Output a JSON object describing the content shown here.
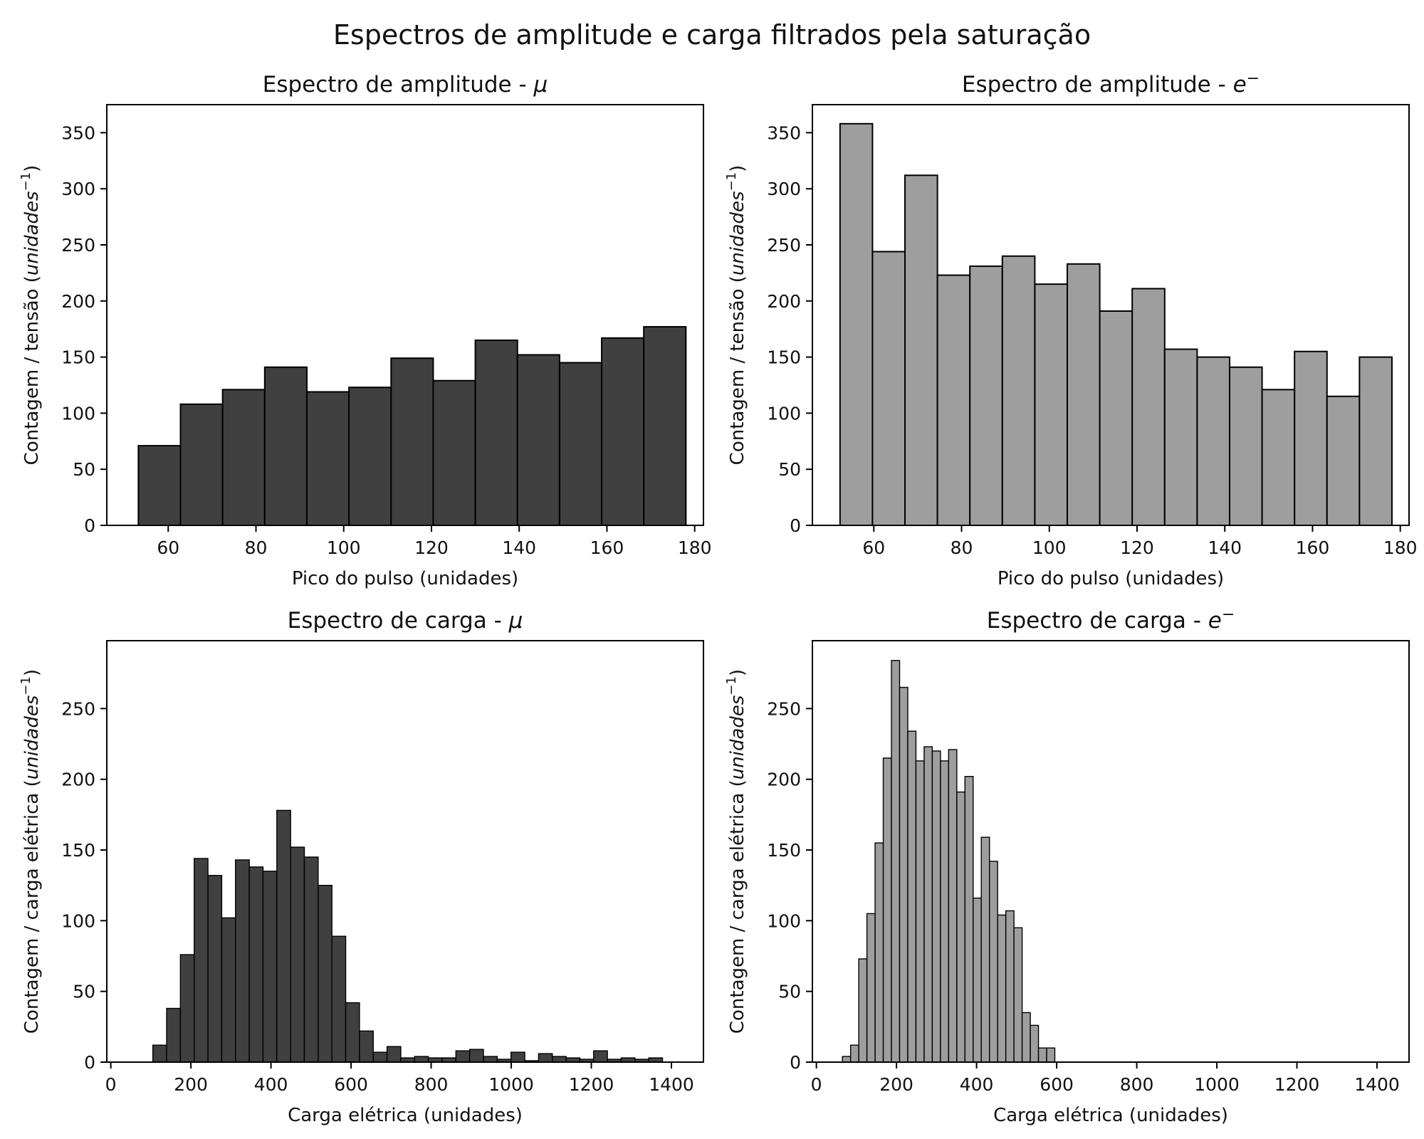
{
  "figure": {
    "suptitle": "Espectros de amplitude e carga filtrados pela saturação"
  },
  "colors": {
    "muon": "#404040",
    "electron": "#9e9e9e",
    "edge": "#000000"
  },
  "chart_data": [
    {
      "type": "bar",
      "title": "Espectro de amplitude - μ",
      "title_text": "Espectro de amplitude - ",
      "title_symbol": "μ",
      "title_sup": "",
      "xlabel": "Pico do pulso (unidades)",
      "ylabel": "Contagem / tensão (unidades⁻¹)",
      "ylabel_text": "Contagem / tensão (",
      "ylabel_unit": "unidades",
      "ylabel_sup": "−1",
      "ylabel_close": ")",
      "color": "#404040",
      "xlim": [
        46,
        182
      ],
      "ylim": [
        0,
        375
      ],
      "xticks": [
        60,
        80,
        100,
        120,
        140,
        160,
        180
      ],
      "yticks": [
        0,
        50,
        100,
        150,
        200,
        250,
        300,
        350
      ],
      "bin_edges": [
        53.2,
        62.8,
        72.4,
        82.0,
        91.6,
        101.2,
        110.8,
        120.4,
        130.0,
        139.6,
        149.2,
        158.8,
        168.4,
        178.0
      ],
      "values": [
        71,
        108,
        121,
        141,
        119,
        123,
        149,
        129,
        165,
        152,
        145,
        167,
        177
      ],
      "grid": false
    },
    {
      "type": "bar",
      "title": "Espectro de amplitude - e⁻",
      "title_text": "Espectro de amplitude - ",
      "title_symbol": "e",
      "title_sup": "−",
      "xlabel": "Pico do pulso (unidades)",
      "ylabel": "Contagem / tensão (unidades⁻¹)",
      "ylabel_text": "Contagem / tensão (",
      "ylabel_unit": "unidades",
      "ylabel_sup": "−1",
      "ylabel_close": ")",
      "color": "#9e9e9e",
      "xlim": [
        46,
        182
      ],
      "ylim": [
        0,
        375
      ],
      "xticks": [
        60,
        80,
        100,
        120,
        140,
        160,
        180
      ],
      "yticks": [
        0,
        50,
        100,
        150,
        200,
        250,
        300,
        350
      ],
      "bin_edges": [
        52.3,
        59.7,
        67.1,
        74.5,
        81.9,
        89.3,
        96.7,
        104.1,
        111.5,
        118.9,
        126.3,
        133.7,
        141.1,
        148.5,
        155.9,
        163.3,
        170.7,
        178.1
      ],
      "values": [
        358,
        244,
        312,
        223,
        231,
        240,
        215,
        233,
        191,
        211,
        157,
        150,
        141,
        121,
        155,
        115,
        150
      ],
      "grid": false
    },
    {
      "type": "bar",
      "title": "Espectro de carga - μ",
      "title_text": "Espectro de carga - ",
      "title_symbol": "μ",
      "title_sup": "",
      "xlabel": "Carga elétrica (unidades)",
      "ylabel": "Contagem / carga elétrica (unidades⁻¹)",
      "ylabel_text": "Contagem / carga elétrica (",
      "ylabel_unit": "unidades",
      "ylabel_sup": "−1",
      "ylabel_close": ")",
      "color": "#404040",
      "xlim": [
        -10,
        1480
      ],
      "ylim": [
        0,
        298
      ],
      "xticks": [
        0,
        200,
        400,
        600,
        800,
        1000,
        1200,
        1400
      ],
      "yticks": [
        0,
        50,
        100,
        150,
        200,
        250
      ],
      "bin_start": 105,
      "bin_width": 34.4,
      "values": [
        12,
        38,
        76,
        144,
        132,
        102,
        143,
        138,
        135,
        178,
        152,
        145,
        125,
        89,
        42,
        22,
        7,
        11,
        3,
        4,
        3,
        3,
        8,
        9,
        4,
        2,
        7,
        1,
        6,
        4,
        3,
        2,
        8,
        2,
        3,
        2,
        3
      ],
      "grid": false
    },
    {
      "type": "bar",
      "title": "Espectro de carga - e⁻",
      "title_text": "Espectro de carga - ",
      "title_symbol": "e",
      "title_sup": "−",
      "xlabel": "Carga elétrica (unidades)",
      "ylabel": "Contagem / carga elétrica (unidades⁻¹)",
      "ylabel_text": "Contagem / carga elétrica (",
      "ylabel_unit": "unidades",
      "ylabel_sup": "−1",
      "ylabel_close": ")",
      "color": "#9e9e9e",
      "xlim": [
        -10,
        1480
      ],
      "ylim": [
        0,
        298
      ],
      "xticks": [
        0,
        200,
        400,
        600,
        800,
        1000,
        1200,
        1400
      ],
      "yticks": [
        0,
        50,
        100,
        150,
        200,
        250
      ],
      "bin_start": 65,
      "bin_width": 20.4,
      "values": [
        4,
        12,
        73,
        105,
        155,
        215,
        284,
        265,
        234,
        213,
        223,
        220,
        213,
        221,
        191,
        202,
        116,
        159,
        142,
        104,
        107,
        95,
        35,
        26,
        10,
        10
      ],
      "grid": false
    }
  ]
}
